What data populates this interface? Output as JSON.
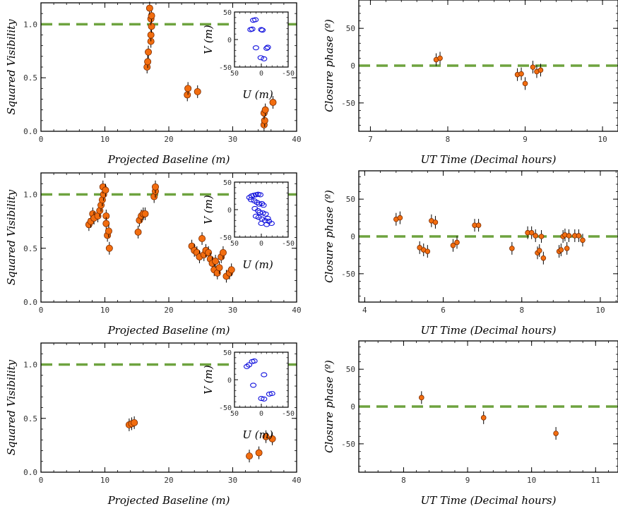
{
  "colors": {
    "point_fill": "#f26d0f",
    "point_edge": "#7a2a00",
    "reference_line": "#6ea33f",
    "inset_point": "#1111dd",
    "axis": "#000000"
  },
  "chart_data": [
    {
      "type": "scatter",
      "panel": "row1-visibility",
      "xlabel": "Projected Baseline (m)",
      "ylabel": "Squared Visibility",
      "xlim": [
        0,
        40
      ],
      "ylim": [
        0,
        1.2
      ],
      "xticks": [
        0,
        10,
        20,
        30,
        40
      ],
      "yticks": [
        0.0,
        0.5,
        1.0
      ],
      "reference_line": 1.0,
      "points": [
        {
          "x": 16.6,
          "y": 0.6
        },
        {
          "x": 16.7,
          "y": 0.65
        },
        {
          "x": 16.8,
          "y": 0.74
        },
        {
          "x": 17.2,
          "y": 0.84
        },
        {
          "x": 17.2,
          "y": 0.9
        },
        {
          "x": 17.3,
          "y": 0.98
        },
        {
          "x": 17.2,
          "y": 1.05
        },
        {
          "x": 17.3,
          "y": 1.08
        },
        {
          "x": 17.0,
          "y": 1.15
        },
        {
          "x": 22.9,
          "y": 0.34
        },
        {
          "x": 23.0,
          "y": 0.4
        },
        {
          "x": 24.5,
          "y": 0.37
        },
        {
          "x": 34.9,
          "y": 0.06
        },
        {
          "x": 35.0,
          "y": 0.1
        },
        {
          "x": 34.9,
          "y": 0.17
        },
        {
          "x": 35.1,
          "y": 0.2
        },
        {
          "x": 36.3,
          "y": 0.27
        }
      ],
      "inset": {
        "xlabel": "U (m)",
        "ylabel": "V (m)",
        "xlim": [
          50,
          -50
        ],
        "ylim": [
          -50,
          50
        ],
        "xticks": [
          50,
          0,
          -50
        ],
        "yticks": [
          50,
          0,
          -50
        ],
        "points": [
          {
            "x": 15,
            "y": 35
          },
          {
            "x": 11,
            "y": 36
          },
          {
            "x": 20,
            "y": 18
          },
          {
            "x": 17,
            "y": 19
          },
          {
            "x": 0,
            "y": 18
          },
          {
            "x": -2,
            "y": 17
          },
          {
            "x": 10,
            "y": -15
          },
          {
            "x": -10,
            "y": -16
          },
          {
            "x": -12,
            "y": -14
          },
          {
            "x": 1,
            "y": -33
          },
          {
            "x": -5,
            "y": -35
          }
        ]
      }
    },
    {
      "type": "scatter",
      "panel": "row1-closure-phase",
      "xlabel": "UT Time (Decimal hours)",
      "ylabel": "Closure phase (º)",
      "xlim": [
        6.85,
        10.2
      ],
      "ylim": [
        -88,
        88
      ],
      "xticks": [
        7,
        8,
        9,
        10
      ],
      "yticks": [
        -50,
        0,
        50
      ],
      "reference_line": 0,
      "points": [
        {
          "x": 7.85,
          "y": 8
        },
        {
          "x": 7.9,
          "y": 10
        },
        {
          "x": 8.9,
          "y": -12
        },
        {
          "x": 8.95,
          "y": -11
        },
        {
          "x": 9.0,
          "y": -24
        },
        {
          "x": 9.1,
          "y": -2
        },
        {
          "x": 9.15,
          "y": -8
        },
        {
          "x": 9.2,
          "y": -6
        }
      ]
    },
    {
      "type": "scatter",
      "panel": "row2-visibility",
      "xlabel": "Projected Baseline (m)",
      "ylabel": "Squared Visibility",
      "xlim": [
        0,
        40
      ],
      "ylim": [
        0,
        1.2
      ],
      "xticks": [
        0,
        10,
        20,
        30,
        40
      ],
      "yticks": [
        0.0,
        0.5,
        1.0
      ],
      "reference_line": 1.0,
      "points": [
        {
          "x": 7.5,
          "y": 0.72
        },
        {
          "x": 7.8,
          "y": 0.75
        },
        {
          "x": 8.1,
          "y": 0.82
        },
        {
          "x": 8.3,
          "y": 0.78
        },
        {
          "x": 8.9,
          "y": 0.8
        },
        {
          "x": 9.2,
          "y": 0.85
        },
        {
          "x": 9.4,
          "y": 0.9
        },
        {
          "x": 9.6,
          "y": 0.95
        },
        {
          "x": 9.8,
          "y": 1.0
        },
        {
          "x": 9.7,
          "y": 1.07
        },
        {
          "x": 10.1,
          "y": 1.04
        },
        {
          "x": 10.2,
          "y": 0.8
        },
        {
          "x": 10.2,
          "y": 0.73
        },
        {
          "x": 10.4,
          "y": 0.62
        },
        {
          "x": 10.6,
          "y": 0.66
        },
        {
          "x": 10.7,
          "y": 0.5
        },
        {
          "x": 15.2,
          "y": 0.65
        },
        {
          "x": 15.4,
          "y": 0.76
        },
        {
          "x": 15.7,
          "y": 0.8
        },
        {
          "x": 16.0,
          "y": 0.82
        },
        {
          "x": 16.3,
          "y": 0.82
        },
        {
          "x": 17.7,
          "y": 0.98
        },
        {
          "x": 17.9,
          "y": 1.03
        },
        {
          "x": 17.9,
          "y": 1.07
        },
        {
          "x": 23.6,
          "y": 0.52
        },
        {
          "x": 24.0,
          "y": 0.48
        },
        {
          "x": 24.4,
          "y": 0.46
        },
        {
          "x": 24.8,
          "y": 0.42
        },
        {
          "x": 25.2,
          "y": 0.59
        },
        {
          "x": 25.5,
          "y": 0.44
        },
        {
          "x": 25.8,
          "y": 0.48
        },
        {
          "x": 26.2,
          "y": 0.46
        },
        {
          "x": 26.5,
          "y": 0.4
        },
        {
          "x": 26.8,
          "y": 0.36
        },
        {
          "x": 27.1,
          "y": 0.3
        },
        {
          "x": 27.3,
          "y": 0.38
        },
        {
          "x": 27.6,
          "y": 0.27
        },
        {
          "x": 27.9,
          "y": 0.32
        },
        {
          "x": 28.2,
          "y": 0.42
        },
        {
          "x": 28.5,
          "y": 0.46
        },
        {
          "x": 29.0,
          "y": 0.24
        },
        {
          "x": 29.5,
          "y": 0.27
        },
        {
          "x": 29.8,
          "y": 0.3
        }
      ],
      "inset": {
        "xlabel": "U (m)",
        "ylabel": "V (m)",
        "xlim": [
          50,
          -50
        ],
        "ylim": [
          -50,
          50
        ],
        "xticks": [
          50,
          0,
          -50
        ],
        "yticks": [
          50,
          0,
          -50
        ],
        "points": [
          {
            "x": 22,
            "y": 22
          },
          {
            "x": 18,
            "y": 25
          },
          {
            "x": 14,
            "y": 26
          },
          {
            "x": 10,
            "y": 27
          },
          {
            "x": 6,
            "y": 28
          },
          {
            "x": 2,
            "y": 27
          },
          {
            "x": 19,
            "y": 18
          },
          {
            "x": 13,
            "y": 16
          },
          {
            "x": 8,
            "y": 13
          },
          {
            "x": 4,
            "y": 10
          },
          {
            "x": -1,
            "y": 11
          },
          {
            "x": -4,
            "y": 8
          },
          {
            "x": 12,
            "y": 2
          },
          {
            "x": 6,
            "y": -2
          },
          {
            "x": 3,
            "y": -5
          },
          {
            "x": -3,
            "y": -6
          },
          {
            "x": -8,
            "y": -8
          },
          {
            "x": 10,
            "y": -12
          },
          {
            "x": 5,
            "y": -14
          },
          {
            "x": -1,
            "y": -17
          },
          {
            "x": -7,
            "y": -20
          },
          {
            "x": -12,
            "y": -16
          },
          {
            "x": 0,
            "y": -25
          },
          {
            "x": -10,
            "y": -27
          },
          {
            "x": -14,
            "y": -21
          },
          {
            "x": -19,
            "y": -25
          }
        ]
      }
    },
    {
      "type": "scatter",
      "panel": "row2-closure-phase",
      "xlabel": "UT Time (Decimal hours)",
      "ylabel": "Closure phase (º)",
      "xlim": [
        3.85,
        10.45
      ],
      "ylim": [
        -88,
        88
      ],
      "xticks": [
        4,
        6,
        8,
        10
      ],
      "yticks": [
        -50,
        0,
        50
      ],
      "reference_line": 0,
      "points": [
        {
          "x": 4.8,
          "y": 23
        },
        {
          "x": 4.9,
          "y": 25
        },
        {
          "x": 5.4,
          "y": -15
        },
        {
          "x": 5.5,
          "y": -18
        },
        {
          "x": 5.6,
          "y": -20
        },
        {
          "x": 5.7,
          "y": 21
        },
        {
          "x": 5.8,
          "y": 19
        },
        {
          "x": 6.25,
          "y": -12
        },
        {
          "x": 6.35,
          "y": -8
        },
        {
          "x": 6.8,
          "y": 15
        },
        {
          "x": 6.9,
          "y": 15
        },
        {
          "x": 7.75,
          "y": -16
        },
        {
          "x": 8.15,
          "y": 5
        },
        {
          "x": 8.25,
          "y": 5
        },
        {
          "x": 8.35,
          "y": 1
        },
        {
          "x": 8.4,
          "y": -22
        },
        {
          "x": 8.45,
          "y": -19
        },
        {
          "x": 8.5,
          "y": 0
        },
        {
          "x": 8.55,
          "y": -29
        },
        {
          "x": 8.95,
          "y": -20
        },
        {
          "x": 9.0,
          "y": -18
        },
        {
          "x": 9.05,
          "y": 0
        },
        {
          "x": 9.1,
          "y": 2
        },
        {
          "x": 9.15,
          "y": -16
        },
        {
          "x": 9.2,
          "y": 1
        },
        {
          "x": 9.35,
          "y": 1
        },
        {
          "x": 9.45,
          "y": 1
        },
        {
          "x": 9.55,
          "y": -5
        }
      ]
    },
    {
      "type": "scatter",
      "panel": "row3-visibility",
      "xlabel": "Projected Baseline (m)",
      "ylabel": "Squared Visibility",
      "xlim": [
        0,
        40
      ],
      "ylim": [
        0,
        1.2
      ],
      "xticks": [
        0,
        10,
        20,
        30,
        40
      ],
      "yticks": [
        0.0,
        0.5,
        1.0
      ],
      "reference_line": 1.0,
      "points": [
        {
          "x": 13.8,
          "y": 0.44
        },
        {
          "x": 14.2,
          "y": 0.45
        },
        {
          "x": 14.6,
          "y": 0.46
        },
        {
          "x": 32.6,
          "y": 0.15
        },
        {
          "x": 34.1,
          "y": 0.18
        },
        {
          "x": 35.2,
          "y": 0.33
        },
        {
          "x": 36.2,
          "y": 0.31
        }
      ],
      "inset": {
        "xlabel": "U (m)",
        "ylabel": "V (m)",
        "xlim": [
          50,
          -50
        ],
        "ylim": [
          -50,
          50
        ],
        "xticks": [
          50,
          0,
          -50
        ],
        "yticks": [
          50,
          0,
          -50
        ],
        "points": [
          {
            "x": 27,
            "y": 24
          },
          {
            "x": 23,
            "y": 27
          },
          {
            "x": 17,
            "y": 33
          },
          {
            "x": 13,
            "y": 34
          },
          {
            "x": -5,
            "y": 9
          },
          {
            "x": 15,
            "y": -10
          },
          {
            "x": -15,
            "y": -26
          },
          {
            "x": -20,
            "y": -25
          },
          {
            "x": -5,
            "y": -35
          },
          {
            "x": 0,
            "y": -34
          }
        ]
      }
    },
    {
      "type": "scatter",
      "panel": "row3-closure-phase",
      "xlabel": "UT Time (Decimal hours)",
      "ylabel": "Closure phase (º)",
      "xlim": [
        7.3,
        11.35
      ],
      "ylim": [
        -88,
        88
      ],
      "xticks": [
        8,
        9,
        10,
        11
      ],
      "yticks": [
        -50,
        0,
        50
      ],
      "reference_line": 0,
      "points": [
        {
          "x": 8.28,
          "y": 12
        },
        {
          "x": 9.25,
          "y": -15
        },
        {
          "x": 10.38,
          "y": -36
        }
      ]
    }
  ]
}
